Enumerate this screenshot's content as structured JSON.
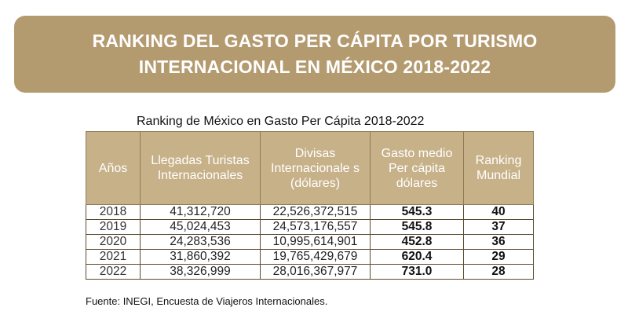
{
  "banner": {
    "line1": "RANKING DEL GASTO PER CÁPITA POR TURISMO",
    "line2": "INTERNACIONAL EN MÉXICO 2018-2022"
  },
  "table": {
    "title": "Ranking de México en Gasto Per Cápita 2018-2022",
    "headers": [
      "Años",
      "Llegadas Turistas Internacionales",
      "Divisas Internacionale s (dólares)",
      "Gasto medio Per cápita dólares",
      "Ranking Mundial"
    ],
    "rows": [
      [
        "2018",
        "41,312,720",
        "22,526,372,515",
        "545.3",
        "40"
      ],
      [
        "2019",
        "45,024,453",
        "24,573,176,557",
        "545.8",
        "37"
      ],
      [
        "2020",
        "24,283,536",
        "10,995,614,901",
        "452.8",
        "36"
      ],
      [
        "2021",
        "31,860,392",
        "19,765,429,679",
        "620.4",
        "29"
      ],
      [
        "2022",
        "38,326,999",
        "28,016,367,977",
        "731.0",
        "28"
      ]
    ]
  },
  "source": "Fuente: INEGI, Encuesta de Viajeros Internacionales.",
  "colors": {
    "banner": "#b49a6f",
    "header": "#c7b189"
  }
}
